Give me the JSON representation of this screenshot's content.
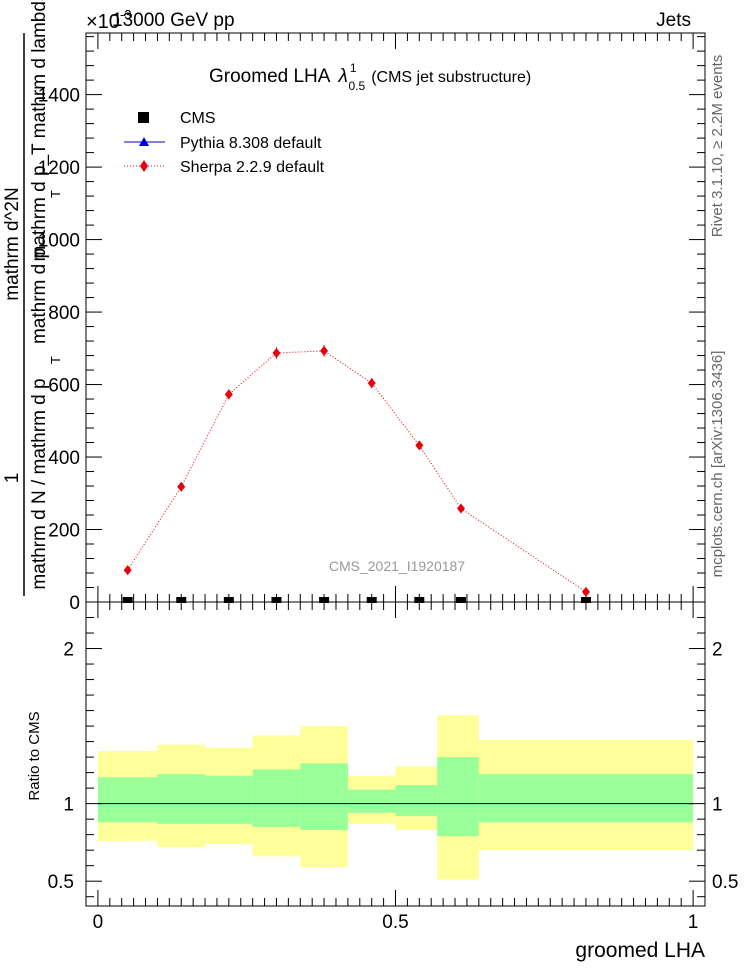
{
  "header": {
    "left": "13000 GeV pp",
    "right": "Jets",
    "exponent": "×10",
    "exponent_power": "-3"
  },
  "plot_title": {
    "main": "Groomed LHA",
    "lambda": "λ",
    "sup": "1",
    "sub": "0.5",
    "suffix": "(CMS jet substructure)"
  },
  "side_labels": {
    "rivet": "Rivet 3.1.10, ≥ 2.2M events",
    "mcplots": "mcplots.cern.ch [arXiv:1306.3436]"
  },
  "watermark": "CMS_2021_I1920187",
  "colors": {
    "sherpa": "#e8000b",
    "pythia": "#0000cc",
    "cms": "#000000",
    "band_inner": "#99ff99",
    "band_outer": "#ffff99"
  },
  "chart_data": [
    {
      "type": "scatter",
      "title": "Groomed LHA λ^1_0.5 (CMS jet substructure)",
      "ylabel_top": "mathrm d^2N",
      "ylabel_mid_a": "mathrm d p_T mathrm d lambda",
      "ylabel_numerator": "1",
      "ylabel_den_a": "mathrm d N / mathrm d p",
      "ylabel_den_b": "mathrm d p",
      "ylabel_sub_t": "T",
      "y_scale_note": "×10^-3",
      "xlim": [
        -0.02,
        1.02
      ],
      "ylim": [
        0,
        1570
      ],
      "yticks": [
        "0",
        "200",
        "400",
        "600",
        "800",
        "1000",
        "1200",
        "1400"
      ],
      "legend_position": "top-left",
      "series": [
        {
          "name": "CMS",
          "marker": "square",
          "x": [
            0.05,
            0.14,
            0.22,
            0.3,
            0.38,
            0.46,
            0.54,
            0.61,
            0.82
          ],
          "y": [
            0,
            0,
            0,
            0,
            0,
            0,
            0,
            0,
            0
          ]
        },
        {
          "name": "Pythia 8.308 default",
          "marker": "triangle",
          "x": [],
          "y": []
        },
        {
          "name": "Sherpa 2.2.9 default",
          "marker": "diamond",
          "line": "dotted",
          "x": [
            0.05,
            0.14,
            0.22,
            0.3,
            0.38,
            0.46,
            0.54,
            0.61,
            0.82
          ],
          "y": [
            88,
            318,
            573,
            687,
            693,
            604,
            432,
            258,
            28
          ],
          "yerr": [
            8,
            10,
            14,
            16,
            16,
            14,
            12,
            8,
            5
          ]
        }
      ]
    },
    {
      "type": "area",
      "ylabel": "Ratio to CMS",
      "xlabel": "groomed LHA",
      "xlim": [
        -0.02,
        1.02
      ],
      "ylim": [
        0.34,
        2.3
      ],
      "xticks": [
        "0",
        "0.5",
        "1"
      ],
      "yticks": [
        "0.5",
        "1",
        "2"
      ],
      "reference_line": 1,
      "bins": [
        {
          "lo": 0.0,
          "hi": 0.1,
          "inner": [
            0.88,
            1.17
          ],
          "outer": [
            0.76,
            1.34
          ]
        },
        {
          "lo": 0.1,
          "hi": 0.18,
          "inner": [
            0.87,
            1.19
          ],
          "outer": [
            0.72,
            1.38
          ]
        },
        {
          "lo": 0.18,
          "hi": 0.26,
          "inner": [
            0.87,
            1.18
          ],
          "outer": [
            0.74,
            1.36
          ]
        },
        {
          "lo": 0.26,
          "hi": 0.34,
          "inner": [
            0.85,
            1.22
          ],
          "outer": [
            0.66,
            1.44
          ]
        },
        {
          "lo": 0.34,
          "hi": 0.42,
          "inner": [
            0.83,
            1.26
          ],
          "outer": [
            0.59,
            1.5
          ]
        },
        {
          "lo": 0.42,
          "hi": 0.5,
          "inner": [
            0.94,
            1.09
          ],
          "outer": [
            0.87,
            1.18
          ]
        },
        {
          "lo": 0.5,
          "hi": 0.57,
          "inner": [
            0.92,
            1.12
          ],
          "outer": [
            0.83,
            1.24
          ]
        },
        {
          "lo": 0.57,
          "hi": 0.64,
          "inner": [
            0.79,
            1.3
          ],
          "outer": [
            0.51,
            1.57
          ]
        },
        {
          "lo": 0.64,
          "hi": 1.0,
          "inner": [
            0.88,
            1.19
          ],
          "outer": [
            0.7,
            1.41
          ]
        }
      ]
    }
  ]
}
